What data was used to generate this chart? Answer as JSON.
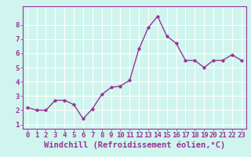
{
  "x": [
    0,
    1,
    2,
    3,
    4,
    5,
    6,
    7,
    8,
    9,
    10,
    11,
    12,
    13,
    14,
    15,
    16,
    17,
    18,
    19,
    20,
    21,
    22,
    23
  ],
  "y": [
    2.2,
    2.0,
    2.0,
    2.7,
    2.7,
    2.4,
    1.4,
    2.1,
    3.1,
    3.6,
    3.7,
    4.1,
    6.3,
    7.8,
    8.6,
    7.2,
    6.7,
    5.5,
    5.5,
    5.0,
    5.5,
    5.5,
    5.9,
    5.5
  ],
  "line_color": "#993399",
  "marker_color": "#993399",
  "bg_color": "#cff5ee",
  "grid_color": "#ffffff",
  "xlabel": "Windchill (Refroidissement éolien,°C)",
  "xlabel_color": "#993399",
  "tick_color": "#993399",
  "border_color": "#993399",
  "ylim": [
    0.7,
    9.3
  ],
  "xlim": [
    -0.5,
    23.5
  ],
  "yticks": [
    1,
    2,
    3,
    4,
    5,
    6,
    7,
    8
  ],
  "xticks": [
    0,
    1,
    2,
    3,
    4,
    5,
    6,
    7,
    8,
    9,
    10,
    11,
    12,
    13,
    14,
    15,
    16,
    17,
    18,
    19,
    20,
    21,
    22,
    23
  ],
  "tick_fontsize": 6.5,
  "xlabel_fontsize": 7.5,
  "line_width": 1.0,
  "marker_size": 2.5
}
